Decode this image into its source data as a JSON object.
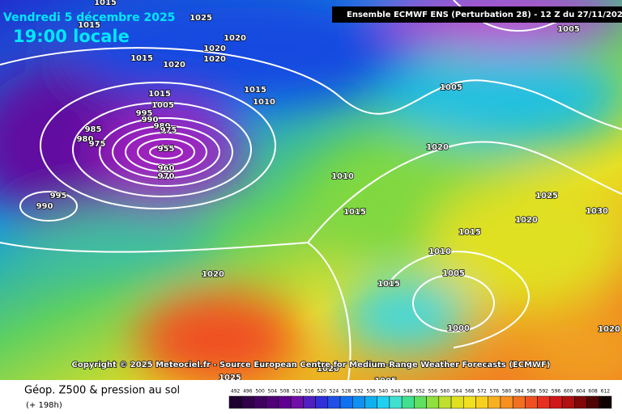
{
  "header": {
    "date": "Vendredi 5 décembre 2025",
    "time": "19:00 locale",
    "model": "Ensemble ECMWF ENS  (Perturbation 28)  -  12 Z du 27/11/2025"
  },
  "copyright": "Copyright © 2025 Meteociel.fr - Source European Centre for Medium-Range Weather Forecasts (ECMWF)",
  "caption": {
    "title": "Géop. Z500 & pression au sol",
    "lead": "(+ 198h)"
  },
  "isobar_labels": [
    "1015",
    "1025",
    "1015",
    "1020",
    "1015",
    "1020",
    "1020",
    "1020",
    "1015",
    "1010",
    "1015",
    "1005",
    "995",
    "990",
    "980",
    "975",
    "955",
    "960",
    "970",
    "985",
    "980",
    "975",
    "995",
    "990",
    "1005",
    "1005",
    "1020",
    "1010",
    "1015",
    "1025",
    "1030",
    "1020",
    "1015",
    "1010",
    "1005",
    "1015",
    "1000",
    "1020",
    "1020",
    "1025",
    "1005",
    "1020"
  ],
  "scale": [
    492,
    496,
    500,
    504,
    508,
    512,
    516,
    520,
    524,
    528,
    532,
    536,
    540,
    544,
    548,
    552,
    556,
    560,
    564,
    568,
    572,
    576,
    580,
    584,
    588,
    592,
    596,
    600,
    604,
    608,
    612
  ]
}
